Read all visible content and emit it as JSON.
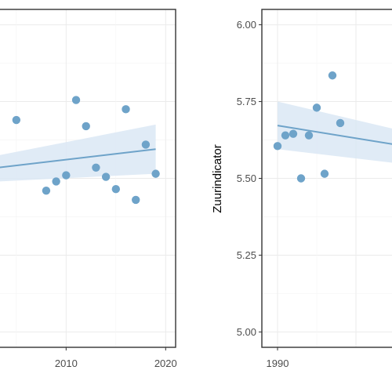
{
  "chart_data": [
    {
      "type": "scatter",
      "title": "",
      "xlabel": "",
      "ylabel": "",
      "xlim": [
        2003.2,
        2021
      ],
      "ylim": [
        4.95,
        6.05
      ],
      "x_ticks": [
        2010,
        2020
      ],
      "x_tick_labels": [
        "2010",
        "2020"
      ],
      "y_ticks": [
        5.0,
        5.25,
        5.5,
        5.75,
        6.0
      ],
      "grid": true,
      "legend": "none",
      "point_color": "#6ea3c9",
      "trend_color": "#6ea3c9",
      "band_color": "#dae8f4",
      "points": [
        {
          "x": 2005,
          "y": 5.69
        },
        {
          "x": 2008,
          "y": 5.46
        },
        {
          "x": 2009,
          "y": 5.49
        },
        {
          "x": 2010,
          "y": 5.51
        },
        {
          "x": 2011,
          "y": 5.755
        },
        {
          "x": 2012,
          "y": 5.67
        },
        {
          "x": 2013,
          "y": 5.535
        },
        {
          "x": 2014,
          "y": 5.505
        },
        {
          "x": 2015,
          "y": 5.465
        },
        {
          "x": 2016,
          "y": 5.725
        },
        {
          "x": 2017,
          "y": 5.43
        },
        {
          "x": 2018,
          "y": 5.61
        },
        {
          "x": 2019,
          "y": 5.515
        }
      ],
      "trend": {
        "x": [
          2003.2,
          2019
        ],
        "y": [
          5.535,
          5.595
        ]
      },
      "band": {
        "x": [
          2003.2,
          2019
        ],
        "upper": [
          5.575,
          5.675
        ],
        "lower": [
          5.49,
          5.515
        ]
      }
    },
    {
      "type": "scatter",
      "title": "",
      "xlabel": "",
      "ylabel": "Zuurindicator",
      "xlim": [
        1988,
        2005
      ],
      "ylim": [
        4.95,
        6.05
      ],
      "x_ticks": [
        1990
      ],
      "x_tick_labels": [
        "1990"
      ],
      "y_ticks": [
        5.0,
        5.25,
        5.5,
        5.75,
        6.0
      ],
      "y_tick_labels": [
        "5.00",
        "5.25",
        "5.50",
        "5.75",
        "6.00"
      ],
      "grid": true,
      "legend": "none",
      "point_color": "#6ea3c9",
      "trend_color": "#6ea3c9",
      "band_color": "#dae8f4",
      "points": [
        {
          "x": 1990,
          "y": 5.605
        },
        {
          "x": 1991,
          "y": 5.64
        },
        {
          "x": 1992,
          "y": 5.645
        },
        {
          "x": 1993,
          "y": 5.5
        },
        {
          "x": 1994,
          "y": 5.64
        },
        {
          "x": 1995,
          "y": 5.73
        },
        {
          "x": 1996,
          "y": 5.515
        },
        {
          "x": 1997,
          "y": 5.835
        },
        {
          "x": 1998,
          "y": 5.68
        }
      ],
      "trend": {
        "x": [
          1990,
          2005
        ],
        "y": [
          5.672,
          5.61
        ]
      },
      "band": {
        "x": [
          1990,
          2005
        ],
        "upper": [
          5.75,
          5.66
        ],
        "lower": [
          5.595,
          5.55
        ]
      }
    }
  ]
}
